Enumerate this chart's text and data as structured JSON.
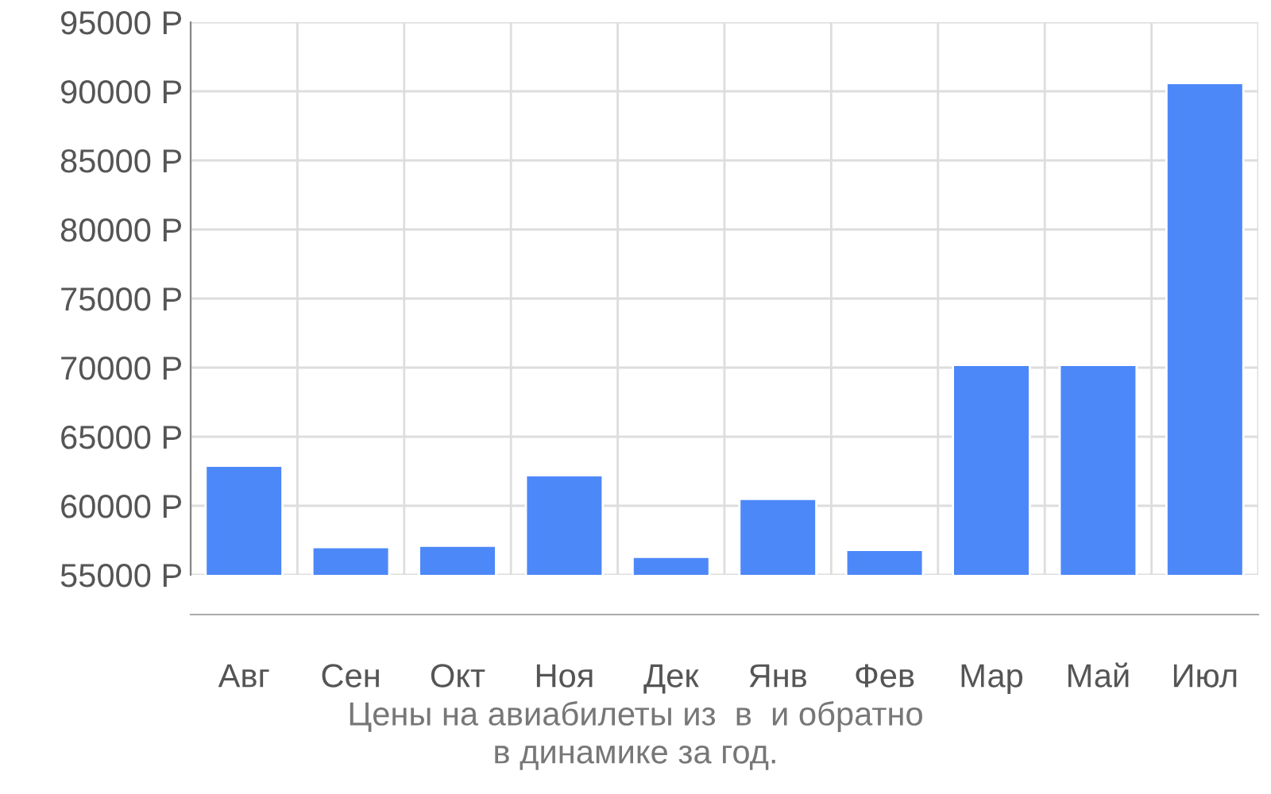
{
  "chart_data": {
    "type": "bar",
    "title": "Цены на авиабилеты из  в  и обратно\nв динамике за год.",
    "categories": [
      "Авг",
      "Сен",
      "Окт",
      "Ноя",
      "Дек",
      "Янв",
      "Фев",
      "Мар",
      "Май",
      "Июл"
    ],
    "values": [
      62900,
      57000,
      57100,
      62200,
      56300,
      60500,
      56800,
      70200,
      70200,
      90600
    ],
    "color": "#4d88f9",
    "ylim": [
      55000,
      95000
    ],
    "yticks": [
      {
        "value": 55000,
        "label": "55000 Р"
      },
      {
        "value": 60000,
        "label": "60000 Р"
      },
      {
        "value": 65000,
        "label": "65000 Р"
      },
      {
        "value": 70000,
        "label": "70000 Р"
      },
      {
        "value": 75000,
        "label": "75000 Р"
      },
      {
        "value": 80000,
        "label": "80000 Р"
      },
      {
        "value": 85000,
        "label": "85000 Р"
      },
      {
        "value": 90000,
        "label": "90000 Р"
      },
      {
        "value": 95000,
        "label": "95000 Р"
      }
    ],
    "grid": true
  }
}
